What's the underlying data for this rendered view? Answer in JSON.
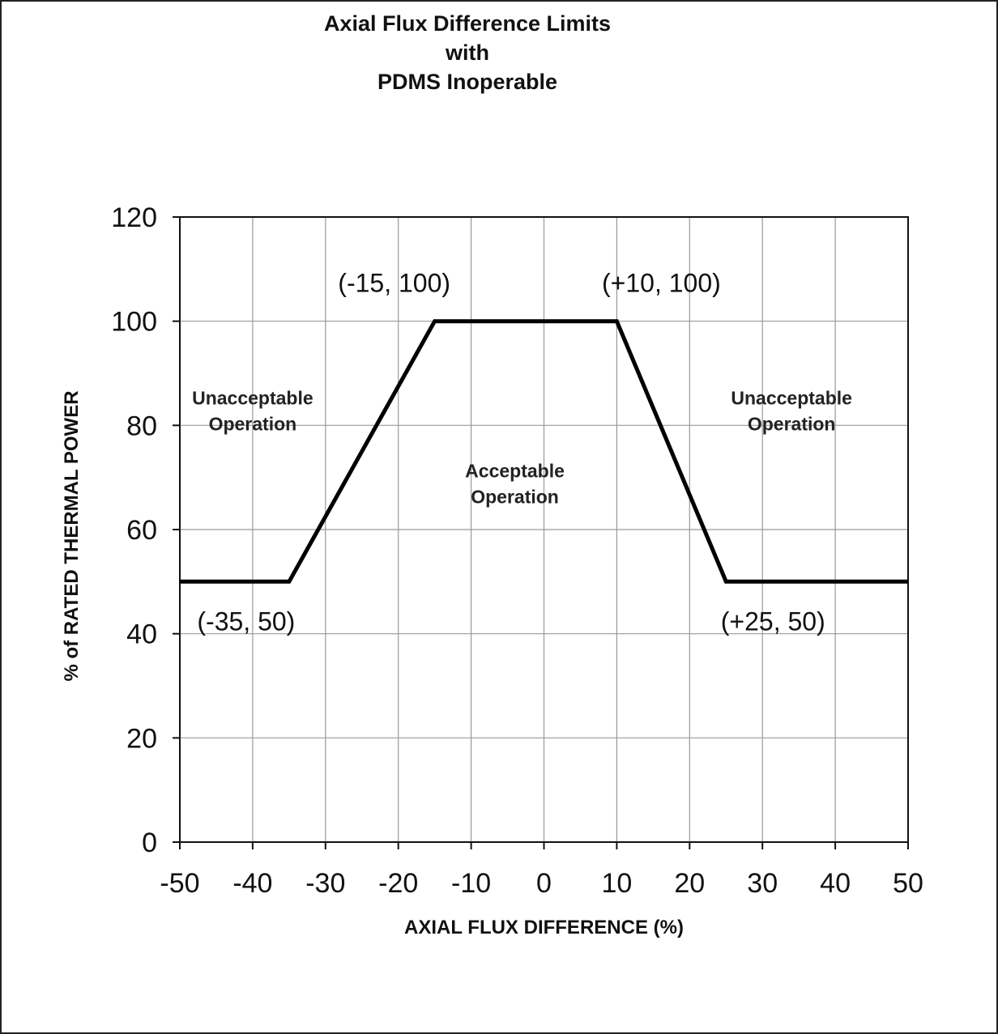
{
  "chart_data": {
    "type": "line",
    "title_lines": [
      "Axial Flux Difference Limits",
      "with",
      "PDMS Inoperable"
    ],
    "xlabel": "AXIAL FLUX DIFFERENCE (%)",
    "ylabel": "% of RATED THERMAL POWER",
    "xlim": [
      -50,
      50
    ],
    "ylim": [
      0,
      120
    ],
    "xticks": [
      -50,
      -40,
      -30,
      -20,
      -10,
      0,
      10,
      20,
      30,
      40,
      50
    ],
    "yticks": [
      0,
      20,
      40,
      60,
      80,
      100,
      120
    ],
    "grid": true,
    "series": [
      {
        "x": [
          -50,
          -35,
          -15,
          10,
          25,
          50
        ],
        "y": [
          50,
          50,
          100,
          100,
          50,
          50
        ]
      }
    ],
    "annotations": [
      {
        "text": "(-15, 100)",
        "x": -15,
        "y": 100
      },
      {
        "text": "(+10, 100)",
        "x": 10,
        "y": 100
      },
      {
        "text": "(-35, 50)",
        "x": -35,
        "y": 50
      },
      {
        "text": "(+25, 50)",
        "x": 25,
        "y": 50
      }
    ],
    "regions": [
      {
        "lines": [
          "Unacceptable",
          "Operation"
        ],
        "x": -40,
        "y": 84
      },
      {
        "lines": [
          "Acceptable",
          "Operation"
        ],
        "x": -4,
        "y": 70
      },
      {
        "lines": [
          "Unacceptable",
          "Operation"
        ],
        "x": 34,
        "y": 84
      }
    ]
  }
}
